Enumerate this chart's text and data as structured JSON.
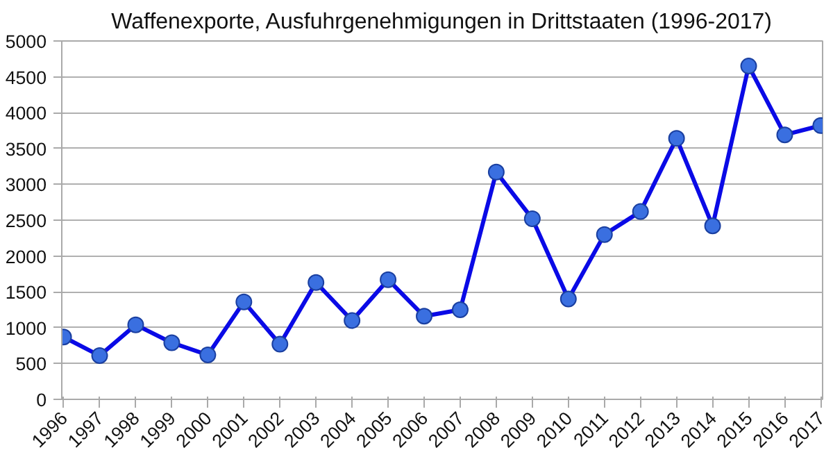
{
  "chart_data": {
    "type": "line",
    "title": "Waffenexporte, Ausfuhrgenehmigungen in Drittstaaten (1996-2017)",
    "categories": [
      "1996",
      "1997",
      "1998",
      "1999",
      "2000",
      "2001",
      "2002",
      "2003",
      "2004",
      "2005",
      "2006",
      "2007",
      "2008",
      "2009",
      "2010",
      "2011",
      "2012",
      "2013",
      "2014",
      "2015",
      "2016",
      "2017"
    ],
    "series": [
      {
        "color": "#0a0ae6",
        "values": [
          870,
          610,
          1040,
          790,
          620,
          1360,
          770,
          1630,
          1100,
          1670,
          1160,
          1250,
          3170,
          2520,
          1400,
          2300,
          2620,
          3640,
          2420,
          4650,
          3690,
          3820
        ]
      }
    ],
    "ylim": [
      0,
      5000
    ],
    "yticks": [
      0,
      500,
      1000,
      1500,
      2000,
      2500,
      3000,
      3500,
      4000,
      4500,
      5000
    ],
    "grid": "y",
    "marker": "circle",
    "line_style": "solid"
  }
}
